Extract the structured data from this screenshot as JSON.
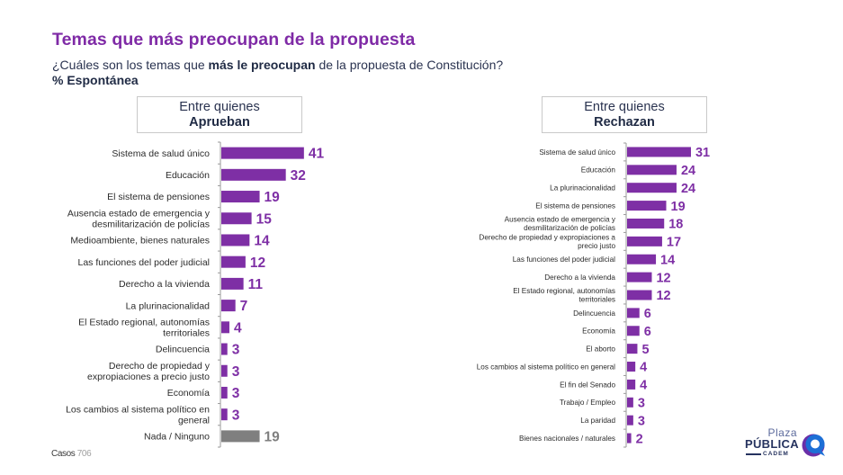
{
  "header": {
    "title": "Temas que más preocupan de la propuesta",
    "subtitle_pre": "¿Cuáles son los temas que ",
    "subtitle_bold": "más le preocupan",
    "subtitle_post": " de la propuesta de Constitución?",
    "subtitle2": "% Espontánea"
  },
  "footer": {
    "casos_label": "Casos",
    "casos_value": "706"
  },
  "logo": {
    "line1": "Plaza",
    "line2": "PÚBLICA",
    "line3": "CADEM"
  },
  "colors": {
    "title": "#7f2aa6",
    "bar": "#7e2fa5",
    "bar_none": "#7f7f7f",
    "value_label": "#7e2fa5",
    "value_label_none": "#7f7f7f",
    "axis": "#9a9a9a"
  },
  "chart_data": [
    {
      "type": "bar",
      "orientation": "horizontal",
      "group_label_line1": "Entre quienes",
      "group_label_line2": "Aprueban",
      "categories": [
        "Sistema de salud único",
        "Educación",
        "El sistema de pensiones",
        "Ausencia estado de emergencia y desmilitarización de policías",
        "Medioambiente, bienes naturales",
        "Las funciones del poder judicial",
        "Derecho a la vivienda",
        "La plurinacionalidad",
        "El Estado regional, autonomías territoriales",
        "Delincuencia",
        "Derecho de propiedad y expropiaciones a precio justo",
        "Economía",
        "Los cambios al sistema político en general",
        "Nada / Ninguno"
      ],
      "category_lines": [
        [
          "Sistema de salud único"
        ],
        [
          "Educación"
        ],
        [
          "El sistema de pensiones"
        ],
        [
          "Ausencia estado de emergencia y",
          "desmilitarización de policías"
        ],
        [
          "Medioambiente, bienes naturales"
        ],
        [
          "Las funciones del poder judicial"
        ],
        [
          "Derecho a la vivienda"
        ],
        [
          "La plurinacionalidad"
        ],
        [
          "El Estado regional, autonomías",
          "territoriales"
        ],
        [
          "Delincuencia"
        ],
        [
          "Derecho de propiedad y",
          "expropiaciones a precio justo"
        ],
        [
          "Economía"
        ],
        [
          "Los cambios al sistema político en",
          "general"
        ],
        [
          "Nada / Ninguno"
        ]
      ],
      "values": [
        41,
        32,
        19,
        15,
        14,
        12,
        11,
        7,
        4,
        3,
        3,
        3,
        3,
        19
      ],
      "highlight_gray": [
        "Nada / Ninguno"
      ],
      "unit": "%",
      "xlim": [
        0,
        45
      ],
      "grid": false,
      "legend": "none"
    },
    {
      "type": "bar",
      "orientation": "horizontal",
      "group_label_line1": "Entre quienes",
      "group_label_line2": "Rechazan",
      "categories": [
        "Sistema de salud único",
        "Educación",
        "La plurinacionalidad",
        "El sistema de pensiones",
        "Ausencia estado de emergencia y desmilitarización de policías",
        "Derecho de propiedad y expropiaciones a precio justo",
        "Las funciones del poder judicial",
        "Derecho a la vivienda",
        "El Estado regional, autonomías territoriales",
        "Delincuencia",
        "Economía",
        "El aborto",
        "Los cambios al sistema político en general",
        "El fin del Senado",
        "Trabajo / Empleo",
        "La paridad",
        "Bienes nacionales / naturales"
      ],
      "category_lines": [
        [
          "Sistema de salud único"
        ],
        [
          "Educación"
        ],
        [
          "La plurinacionalidad"
        ],
        [
          "El sistema de pensiones"
        ],
        [
          "Ausencia estado de emergencia y",
          "desmilitarización de policías"
        ],
        [
          "Derecho de propiedad y expropiaciones a",
          "precio justo"
        ],
        [
          "Las funciones del poder judicial"
        ],
        [
          "Derecho a la vivienda"
        ],
        [
          "El Estado regional, autonomías",
          "territoriales"
        ],
        [
          "Delincuencia"
        ],
        [
          "Economía"
        ],
        [
          "El aborto"
        ],
        [
          "Los cambios al sistema político en general"
        ],
        [
          "El fin del Senado"
        ],
        [
          "Trabajo / Empleo"
        ],
        [
          "La paridad"
        ],
        [
          "Bienes nacionales / naturales"
        ]
      ],
      "values": [
        31,
        24,
        24,
        19,
        18,
        17,
        14,
        12,
        12,
        6,
        6,
        5,
        4,
        4,
        3,
        3,
        2
      ],
      "highlight_gray": [],
      "unit": "%",
      "xlim": [
        0,
        45
      ],
      "grid": false,
      "legend": "none"
    }
  ]
}
